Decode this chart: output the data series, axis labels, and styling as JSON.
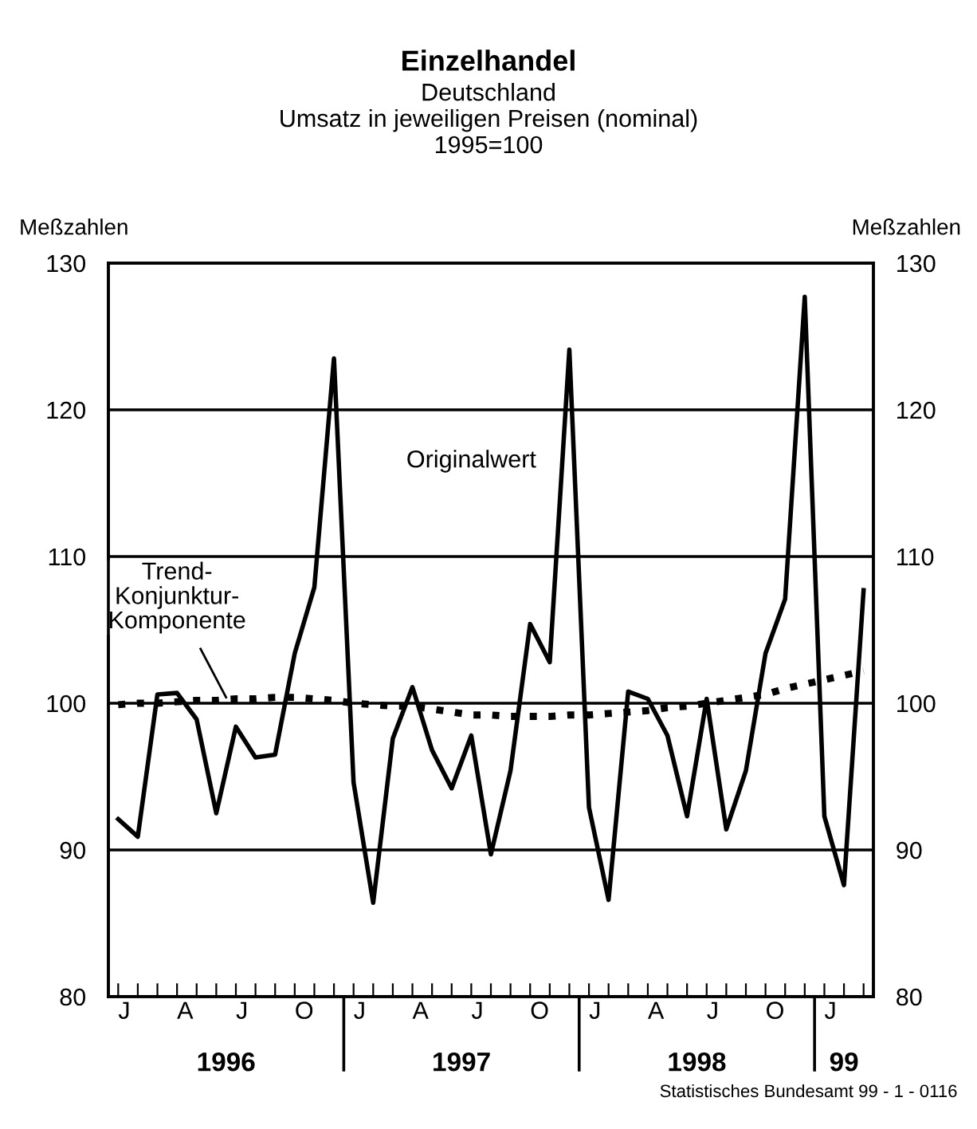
{
  "chart_data": {
    "type": "line",
    "title": "Einzelhandel",
    "subtitle": "Deutschland\nUmsatz in jeweiligen Preisen (nominal)\n1995=100",
    "ylabel": "Meßzahlen",
    "y2label": "Meßzahlen",
    "categories": [
      "J",
      null,
      null,
      "A",
      null,
      null,
      "J",
      null,
      null,
      "O",
      null,
      null,
      "J",
      null,
      null,
      "A",
      null,
      null,
      "J",
      null,
      null,
      "O",
      null,
      null,
      "J",
      null,
      null,
      "A",
      null,
      null,
      "J",
      null,
      null,
      "O",
      null,
      null,
      "J",
      null,
      null
    ],
    "series": [
      {
        "name": "Originalwert",
        "color": "#000000",
        "line_style": "solid",
        "values": [
          92.1,
          90.9,
          100.6,
          100.7,
          98.9,
          92.5,
          98.4,
          96.3,
          96.5,
          103.4,
          107.9,
          123.5,
          94.6,
          86.4,
          97.6,
          101.1,
          96.8,
          94.2,
          97.8,
          89.7,
          95.4,
          105.4,
          102.8,
          124.1,
          92.9,
          86.6,
          100.8,
          100.3,
          97.8,
          92.3,
          100.3,
          91.4,
          95.4,
          103.4,
          107.1,
          127.7,
          92.3,
          87.6,
          107.7
        ]
      },
      {
        "name": "Trend-\nKonjunktur-\nKomponente",
        "color": "#000000",
        "line_style": "dotted",
        "values": [
          99.9,
          100.0,
          100.0,
          100.1,
          100.2,
          100.2,
          100.3,
          100.3,
          100.4,
          100.4,
          100.3,
          100.2,
          100.0,
          99.9,
          99.8,
          99.8,
          99.6,
          99.4,
          99.2,
          99.2,
          99.1,
          99.1,
          99.1,
          99.2,
          99.2,
          99.3,
          99.4,
          99.5,
          99.7,
          99.8,
          100.0,
          100.2,
          100.4,
          100.6,
          101.0,
          101.3,
          101.6,
          101.9,
          102.2
        ]
      }
    ],
    "ylim": [
      80,
      130
    ],
    "yticks": [
      80,
      90,
      100,
      110,
      120,
      130
    ],
    "y2lim": [
      80,
      130
    ],
    "y2ticks": [
      80,
      90,
      100,
      110,
      120,
      130
    ],
    "grid": "y",
    "legend": false,
    "annotations": [
      "1996",
      "1997",
      "1998",
      "99",
      "Statistisches Bundesamt 99 - 1 - 0116"
    ]
  }
}
